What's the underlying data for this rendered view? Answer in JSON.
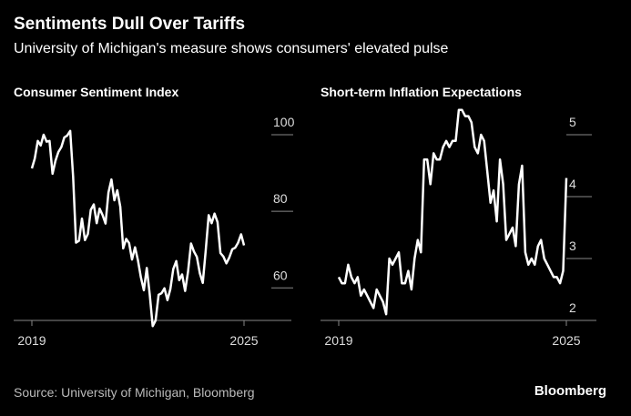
{
  "title": "Sentiments Dull Over Tariffs",
  "subtitle": "University of Michigan's measure shows consumers' elevated pulse",
  "source": "Source: University of Michigan, Bloomberg",
  "brand": "Bloomberg",
  "chart_data": [
    {
      "type": "line",
      "title": "Consumer Sentiment Index",
      "categories": [
        "2019",
        null,
        null,
        null,
        null,
        null,
        null,
        null,
        null,
        null,
        null,
        null,
        null,
        null,
        null,
        null,
        null,
        null,
        null,
        null,
        null,
        null,
        null,
        null,
        null,
        null,
        null,
        null,
        null,
        null,
        null,
        null,
        null,
        null,
        null,
        null,
        null,
        null,
        null,
        null,
        null,
        null,
        null,
        null,
        null,
        null,
        null,
        null,
        null,
        null,
        null,
        null,
        null,
        null,
        null,
        null,
        null,
        null,
        null,
        null,
        null,
        null,
        null,
        null,
        null,
        null,
        null,
        null,
        null,
        null,
        null,
        null,
        "2025"
      ],
      "series": [
        {
          "color": "#ffffff",
          "values": [
            91.2,
            93.8,
            98.4,
            97.2,
            100.0,
            98.2,
            98.4,
            89.8,
            93.2,
            95.5,
            96.8,
            99.3,
            99.8,
            101.0,
            89.1,
            71.8,
            72.3,
            78.1,
            72.5,
            74.1,
            80.4,
            81.8,
            76.9,
            80.7,
            79.0,
            76.8,
            84.9,
            88.3,
            82.9,
            85.5,
            81.2,
            70.3,
            72.8,
            71.7,
            67.4,
            70.6,
            67.2,
            62.8,
            59.4,
            65.2,
            58.4,
            50.0,
            51.5,
            58.2,
            58.6,
            59.9,
            56.8,
            59.7,
            64.9,
            67.0,
            62.0,
            63.5,
            59.2,
            64.2,
            71.6,
            69.5,
            68.1,
            63.8,
            61.3,
            69.7,
            79.0,
            76.9,
            79.4,
            77.2,
            69.1,
            68.2,
            66.4,
            67.9,
            70.1,
            70.5,
            71.8,
            74.0,
            71.1
          ]
        }
      ],
      "ylim": [
        51.5,
        107
      ],
      "yticks": [
        60,
        80,
        100
      ]
    },
    {
      "type": "line",
      "title": "Short-term Inflation Expectations",
      "categories": [
        "2019",
        null,
        null,
        null,
        null,
        null,
        null,
        null,
        null,
        null,
        null,
        null,
        null,
        null,
        null,
        null,
        null,
        null,
        null,
        null,
        null,
        null,
        null,
        null,
        null,
        null,
        null,
        null,
        null,
        null,
        null,
        null,
        null,
        null,
        null,
        null,
        null,
        null,
        null,
        null,
        null,
        null,
        null,
        null,
        null,
        null,
        null,
        null,
        null,
        null,
        null,
        null,
        null,
        null,
        null,
        null,
        null,
        null,
        null,
        null,
        null,
        null,
        null,
        null,
        null,
        null,
        null,
        null,
        null,
        null,
        null,
        null,
        "2025"
      ],
      "series": [
        {
          "color": "#ffffff",
          "values": [
            2.7,
            2.6,
            2.6,
            2.9,
            2.7,
            2.6,
            2.7,
            2.4,
            2.5,
            2.4,
            2.3,
            2.2,
            2.5,
            2.4,
            2.3,
            2.1,
            3.0,
            2.9,
            3.0,
            3.1,
            2.6,
            2.6,
            2.8,
            2.5,
            3.0,
            3.3,
            3.1,
            4.6,
            4.6,
            4.2,
            4.7,
            4.6,
            4.6,
            4.8,
            4.9,
            4.8,
            4.9,
            4.9,
            5.4,
            5.4,
            5.3,
            5.3,
            5.2,
            4.8,
            4.7,
            5.0,
            4.9,
            4.4,
            3.9,
            4.1,
            3.6,
            4.6,
            4.2,
            3.3,
            3.4,
            3.5,
            3.2,
            4.2,
            4.5,
            3.1,
            2.9,
            3.0,
            2.9,
            3.2,
            3.3,
            3.0,
            2.9,
            2.8,
            2.7,
            2.7,
            2.6,
            2.8,
            4.3
          ]
        }
      ],
      "ylim": [
        2,
        5.5
      ],
      "yticks": [
        2,
        3,
        4,
        5
      ]
    }
  ]
}
